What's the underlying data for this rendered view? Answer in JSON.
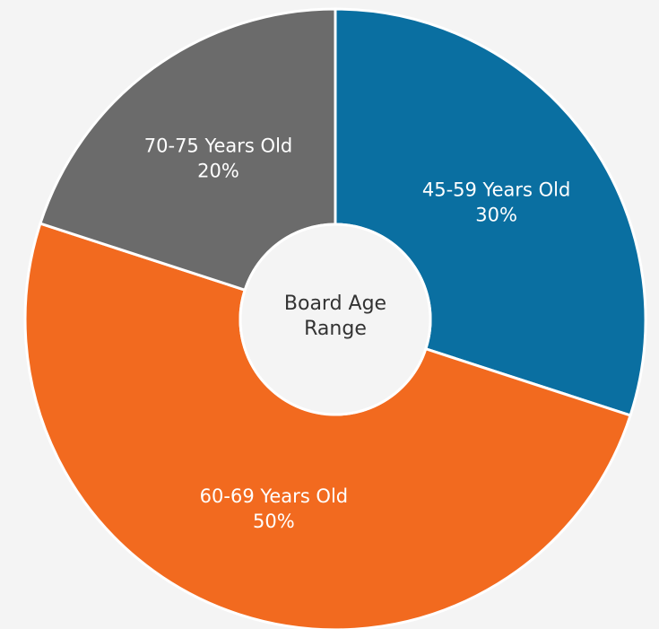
{
  "chart_data": {
    "type": "donut",
    "title": "Board Age Range",
    "categories": [
      "45-59 Years Old",
      "60-69 Years Old",
      "70-75 Years Old"
    ],
    "values": [
      30,
      50,
      20
    ],
    "value_labels": [
      "30%",
      "50%",
      "20%"
    ],
    "colors": [
      "#0a6fa1",
      "#f26a1f",
      "#6b6b6b"
    ]
  }
}
